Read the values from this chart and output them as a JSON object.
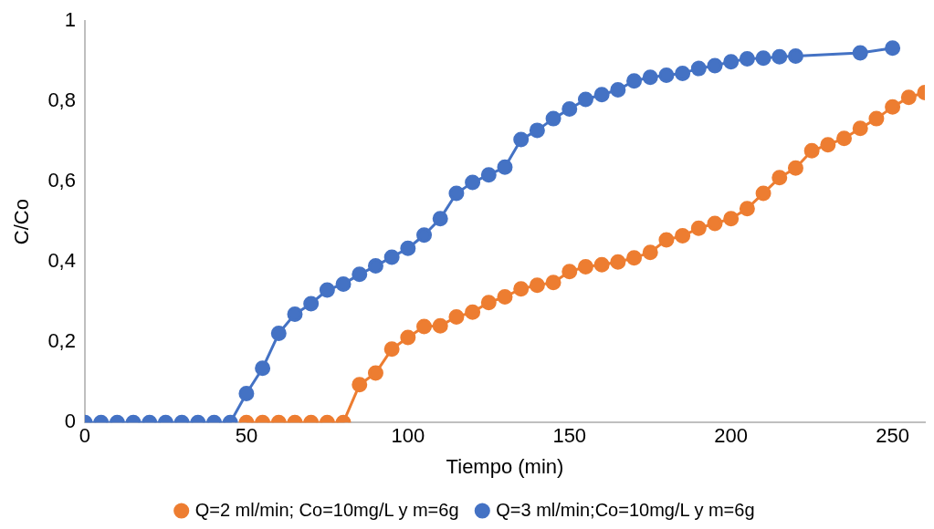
{
  "chart_data": {
    "type": "line",
    "xlabel": "Tiempo (min)",
    "ylabel": "C/Co",
    "xlim": [
      0,
      260
    ],
    "xticks": [
      0,
      50,
      100,
      150,
      200,
      250
    ],
    "ylim": [
      0,
      1
    ],
    "yticks": [
      0,
      {
        "value": 0.2,
        "label": "0,2"
      },
      {
        "value": 0.4,
        "label": "0,4"
      },
      {
        "value": 0.6,
        "label": "0,6"
      },
      {
        "value": 0.8,
        "label": "0,8"
      },
      1
    ],
    "grid": false,
    "legend": "bottom",
    "marker": "circle",
    "line_style": "solid",
    "series": [
      {
        "name": "Q=2 ml/min; Co=10mg/L y m=6g",
        "color": "#ed7d31",
        "x": [
          50,
          55,
          60,
          65,
          70,
          75,
          80,
          85,
          90,
          95,
          100,
          105,
          110,
          115,
          120,
          125,
          130,
          135,
          140,
          145,
          150,
          155,
          160,
          165,
          170,
          175,
          180,
          185,
          190,
          195,
          200,
          205,
          210,
          215,
          220,
          225,
          230,
          235,
          240,
          245,
          250,
          255,
          260
        ],
        "values": [
          0,
          0,
          0,
          0,
          0,
          0,
          0,
          0.094,
          0.123,
          0.183,
          0.212,
          0.239,
          0.241,
          0.263,
          0.275,
          0.299,
          0.313,
          0.333,
          0.342,
          0.349,
          0.376,
          0.388,
          0.393,
          0.4,
          0.41,
          0.424,
          0.455,
          0.465,
          0.484,
          0.496,
          0.508,
          0.533,
          0.571,
          0.61,
          0.634,
          0.677,
          0.692,
          0.708,
          0.733,
          0.757,
          0.786,
          0.81,
          0.822
        ]
      },
      {
        "name": "Q=3 ml/min;Co=10mg/L y m=6g",
        "color": "#4472c4",
        "x": [
          0,
          5,
          10,
          15,
          20,
          25,
          30,
          35,
          40,
          45,
          50,
          55,
          60,
          65,
          70,
          75,
          80,
          85,
          90,
          95,
          100,
          105,
          110,
          115,
          120,
          125,
          130,
          135,
          140,
          145,
          150,
          155,
          160,
          165,
          170,
          175,
          180,
          185,
          190,
          195,
          200,
          205,
          210,
          215,
          220,
          240,
          250
        ],
        "values": [
          0,
          0,
          0,
          0,
          0,
          0,
          0,
          0,
          0,
          0,
          0.072,
          0.135,
          0.222,
          0.27,
          0.296,
          0.33,
          0.345,
          0.369,
          0.39,
          0.412,
          0.434,
          0.467,
          0.508,
          0.571,
          0.598,
          0.617,
          0.636,
          0.705,
          0.728,
          0.757,
          0.781,
          0.805,
          0.817,
          0.829,
          0.851,
          0.86,
          0.865,
          0.87,
          0.882,
          0.889,
          0.899,
          0.906,
          0.908,
          0.911,
          0.913,
          0.921,
          0.933
        ]
      }
    ]
  }
}
